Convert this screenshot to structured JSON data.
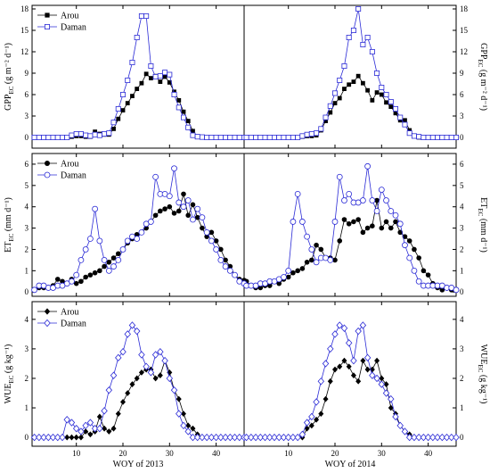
{
  "chart_data": {
    "type": "line",
    "x_labels": [
      "WOY of 2013",
      "WOY of 2014"
    ],
    "series_names": [
      "Arou",
      "Daman"
    ],
    "series_colors": [
      "#000000",
      "#2b2bd6"
    ],
    "panels": [
      {
        "key": "gpp",
        "ylabel_main": "GPP",
        "ylabel_sub": "EC",
        "ylabel_unit": "(g m⁻² d⁻¹)",
        "ylim": [
          -1.5,
          18.5
        ],
        "yticks": [
          0,
          3,
          6,
          9,
          12,
          15,
          18
        ],
        "arou_marker": "square",
        "series": [
          {
            "name": "Arou",
            "years": [
              [
                0,
                0,
                0,
                0,
                0,
                0,
                0,
                0,
                0.1,
                0.2,
                0.2,
                0.1,
                0.1,
                0.8,
                0.5,
                0.4,
                0.4,
                1.2,
                2.6,
                3.8,
                4.8,
                5.8,
                6.8,
                7.6,
                8.9,
                8.3,
                8.6,
                7.8,
                8.5,
                7.7,
                6.4,
                5.2,
                3.6,
                2.3,
                0.9,
                0.1,
                0.05,
                0,
                0,
                0,
                0,
                0,
                0,
                0,
                0,
                0
              ],
              [
                0,
                0,
                0,
                0,
                0,
                0,
                0,
                0,
                0,
                0,
                0,
                0,
                0.1,
                0.2,
                0.2,
                0.3,
                1.0,
                2.3,
                3.5,
                4.8,
                5.5,
                6.8,
                7.4,
                7.8,
                8.6,
                7.6,
                6.6,
                5.2,
                6.3,
                6.0,
                4.9,
                4.3,
                3.4,
                2.4,
                2.4,
                1.0,
                0.2,
                0,
                0,
                0,
                0,
                0,
                0,
                0,
                0,
                0
              ]
            ]
          },
          {
            "name": "Daman",
            "years": [
              [
                0,
                0,
                0,
                0,
                0,
                0,
                0,
                0,
                0.3,
                0.5,
                0.5,
                0.3,
                0.2,
                0.4,
                0.3,
                0.5,
                0.6,
                2.1,
                4.0,
                6.0,
                8.0,
                10.5,
                14.0,
                17.0,
                17.0,
                10.0,
                8.5,
                8.6,
                9.1,
                8.8,
                6.0,
                4.2,
                2.8,
                1.4,
                0.3,
                0.1,
                0.05,
                0,
                0,
                0,
                0,
                0,
                0,
                0,
                0,
                0
              ],
              [
                0,
                0,
                0,
                0,
                0,
                0,
                0,
                0,
                0,
                0,
                0,
                0,
                0.2,
                0.4,
                0.5,
                0.6,
                1.2,
                2.8,
                4.4,
                6.2,
                8.0,
                10.0,
                14.0,
                15.0,
                18.0,
                13.0,
                14.0,
                12.0,
                9.0,
                7.0,
                6.0,
                5.0,
                4.0,
                2.8,
                1.8,
                0.6,
                0.2,
                0.1,
                0,
                0,
                0,
                0,
                0,
                0,
                0,
                0
              ]
            ]
          }
        ]
      },
      {
        "key": "et",
        "ylabel_main": "ET",
        "ylabel_sub": "EC",
        "ylabel_unit": "(mm d⁻¹)",
        "ylim": [
          -0.2,
          6.5
        ],
        "yticks": [
          0,
          1,
          2,
          3,
          4,
          5,
          6
        ],
        "arou_marker": "circle",
        "series": [
          {
            "name": "Arou",
            "years": [
              [
                0.1,
                0.2,
                0.2,
                0.2,
                0.3,
                0.6,
                0.5,
                0.4,
                0.6,
                0.4,
                0.5,
                0.7,
                0.8,
                0.9,
                1.0,
                1.2,
                1.4,
                1.6,
                1.8,
                2.0,
                2.3,
                2.5,
                2.7,
                2.8,
                3.0,
                3.3,
                3.6,
                3.8,
                3.9,
                4.0,
                3.7,
                3.8,
                4.6,
                3.6,
                4.1,
                3.5,
                3.0,
                2.6,
                2.8,
                2.4,
                2.0,
                1.5,
                1.2,
                0.8,
                0.6,
                0.55
              ],
              [
                0.5,
                0.3,
                0.2,
                0.2,
                0.3,
                0.3,
                0.5,
                0.4,
                0.6,
                0.7,
                0.9,
                1.0,
                1.1,
                1.4,
                1.5,
                2.2,
                2.0,
                1.6,
                1.6,
                1.5,
                2.4,
                3.4,
                3.2,
                3.3,
                3.4,
                2.8,
                3.0,
                3.1,
                4.3,
                3.0,
                3.3,
                3.0,
                3.3,
                2.8,
                2.6,
                2.4,
                2.0,
                1.6,
                1.0,
                0.8,
                0.4,
                0.2,
                0.1,
                0.2,
                0.1,
                0.1
              ]
            ]
          },
          {
            "name": "Daman",
            "years": [
              [
                0.1,
                0.3,
                0.3,
                0.2,
                0.2,
                0.3,
                0.3,
                0.4,
                0.5,
                0.8,
                1.5,
                2.0,
                2.5,
                3.9,
                2.4,
                1.5,
                1.0,
                1.2,
                1.5,
                2.0,
                2.4,
                2.6,
                2.5,
                2.8,
                3.2,
                3.3,
                5.4,
                4.6,
                4.6,
                4.5,
                5.8,
                4.2,
                4.0,
                4.3,
                3.4,
                3.9,
                3.5,
                2.8,
                2.4,
                2.0,
                1.5,
                1.2,
                1.0,
                0.8,
                0.5,
                0.4
              ],
              [
                0.3,
                0.3,
                0.3,
                0.4,
                0.4,
                0.5,
                0.5,
                0.6,
                0.7,
                1.0,
                3.3,
                4.6,
                3.3,
                2.6,
                2.0,
                1.4,
                1.6,
                1.6,
                1.5,
                3.3,
                5.4,
                4.3,
                4.6,
                4.2,
                4.2,
                4.3,
                5.9,
                4.3,
                3.8,
                4.8,
                4.3,
                3.8,
                3.6,
                3.2,
                2.2,
                1.6,
                1.0,
                0.5,
                0.3,
                0.3,
                0.3,
                0.3,
                0.3,
                0.2,
                0.2,
                0.1
              ]
            ]
          }
        ]
      },
      {
        "key": "wue",
        "ylabel_main": "WUE",
        "ylabel_sub": "EC",
        "ylabel_unit": "(g kg⁻¹)",
        "ylim": [
          -0.3,
          4.6
        ],
        "yticks": [
          0,
          1,
          2,
          3,
          4
        ],
        "arou_marker": "diamond",
        "series": [
          {
            "name": "Arou",
            "years": [
              [
                0,
                0,
                0,
                0,
                0,
                0,
                0,
                0,
                0,
                0,
                0,
                0.2,
                0.1,
                0.2,
                0.7,
                0.3,
                0.2,
                0.3,
                0.8,
                1.2,
                1.5,
                1.8,
                2.0,
                2.2,
                2.3,
                2.3,
                2.0,
                2.1,
                2.6,
                2.2,
                1.6,
                1.3,
                0.8,
                0.4,
                0.3,
                0.1,
                0,
                0,
                0,
                0,
                0,
                0,
                0,
                0,
                0,
                0
              ],
              [
                0,
                0,
                0,
                0,
                0,
                0,
                0,
                0,
                0,
                0,
                0,
                0,
                0,
                0.3,
                0.4,
                0.6,
                0.8,
                1.3,
                1.9,
                2.3,
                2.4,
                2.6,
                2.4,
                2.1,
                1.9,
                2.6,
                2.3,
                2.3,
                2.6,
                2.0,
                1.8,
                1.0,
                0.8,
                0.4,
                0.2,
                0.1,
                0,
                0,
                0,
                0,
                0,
                0,
                0,
                0,
                0,
                0
              ]
            ]
          },
          {
            "name": "Daman",
            "years": [
              [
                0,
                0,
                0,
                0,
                0,
                0,
                0,
                0.6,
                0.5,
                0.3,
                0.2,
                0.4,
                0.5,
                0.3,
                0.3,
                0.9,
                1.6,
                2.1,
                2.7,
                2.9,
                3.5,
                3.8,
                3.6,
                2.8,
                2.4,
                2.2,
                2.8,
                2.9,
                2.6,
                2.0,
                1.6,
                0.8,
                0.4,
                0.2,
                0,
                0,
                0,
                0,
                0,
                0,
                0,
                0,
                0,
                0,
                0,
                0
              ],
              [
                0,
                0,
                0,
                0,
                0,
                0,
                0,
                0,
                0,
                0,
                0,
                0,
                0.1,
                0.5,
                0.7,
                1.2,
                1.9,
                2.5,
                3.0,
                3.5,
                3.8,
                3.7,
                3.2,
                2.6,
                3.6,
                3.8,
                2.7,
                2.1,
                2.0,
                1.8,
                1.5,
                1.3,
                0.7,
                0.4,
                0.2,
                0,
                0,
                0,
                0,
                0,
                0,
                0,
                0,
                0,
                0,
                0
              ]
            ]
          }
        ]
      }
    ]
  }
}
